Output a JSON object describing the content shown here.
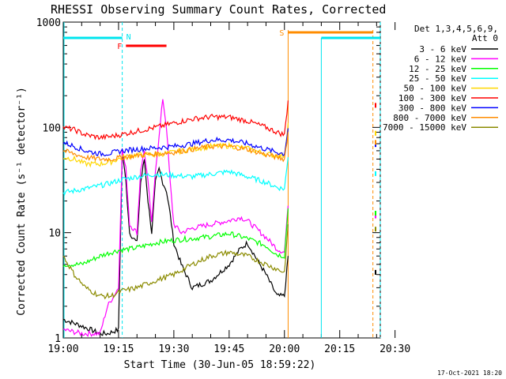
{
  "chart_data": {
    "type": "line",
    "title": "RHESSI Observing Summary Count Rates, Corrected",
    "xlabel": "Start Time (30-Jun-05 18:59:22)",
    "ylabel": "Corrected Count Rate (s⁻¹ detector⁻¹)",
    "yscale": "log",
    "ylim": [
      1,
      1000
    ],
    "xlim_minutes": [
      0,
      86
    ],
    "x_tick_labels": [
      "19:00",
      "19:15",
      "19:30",
      "19:45",
      "20:00",
      "20:15",
      "20:30"
    ],
    "x_tick_minutes": [
      0,
      15,
      30,
      45,
      60,
      75,
      90
    ],
    "y_tick_labels": [
      "1",
      "10",
      "100",
      "1000"
    ],
    "y_tick_values": [
      1,
      10,
      100,
      1000
    ],
    "legend_header": [
      "Det 1,3,4,5,6,9,",
      "Att 0"
    ],
    "series": [
      {
        "name": "3 - 6 keV",
        "color": "#000000",
        "x": [
          0,
          5,
          10,
          12,
          15,
          16,
          17,
          18,
          20,
          21,
          22,
          23,
          24,
          25,
          26,
          27,
          28,
          29,
          30,
          32,
          35,
          40,
          45,
          48,
          50,
          52,
          55,
          58,
          60,
          61
        ],
        "y": [
          1.5,
          1.3,
          1.1,
          1.1,
          1.2,
          60,
          30,
          10,
          8,
          30,
          50,
          20,
          10,
          30,
          40,
          30,
          25,
          15,
          8,
          5,
          3,
          3.5,
          5,
          7,
          8,
          6,
          4,
          2.5,
          2.5,
          6
        ]
      },
      {
        "name": "6 - 12 keV",
        "color": "#ff00ff",
        "x": [
          0,
          5,
          10,
          12,
          15,
          16,
          17,
          18,
          20,
          21,
          22,
          23,
          24,
          25,
          26,
          27,
          28,
          29,
          30,
          32,
          35,
          40,
          45,
          48,
          50,
          55,
          58,
          60,
          61
        ],
        "y": [
          1.2,
          1.1,
          1.1,
          2,
          3,
          60,
          40,
          12,
          10,
          40,
          60,
          30,
          12,
          40,
          80,
          190,
          100,
          30,
          12,
          10,
          11,
          12,
          13,
          14,
          13,
          9,
          7,
          6.5,
          18
        ]
      },
      {
        "name": "12 - 25 keV",
        "color": "#00ff00",
        "x": [
          0,
          5,
          10,
          13,
          15,
          18,
          20,
          25,
          30,
          35,
          40,
          45,
          50,
          55,
          58,
          60,
          61
        ],
        "y": [
          5,
          5,
          6,
          6.5,
          6.8,
          7,
          7.2,
          8,
          8.5,
          8.8,
          9.2,
          9.8,
          8.8,
          7.5,
          6.2,
          6.0,
          17
        ]
      },
      {
        "name": "25 - 50 keV",
        "color": "#00ffff",
        "x": [
          0,
          3,
          8,
          12,
          16,
          20,
          25,
          30,
          35,
          40,
          45,
          50,
          55,
          58,
          60,
          61
        ],
        "y": [
          24,
          25,
          27,
          29,
          32,
          34,
          36,
          35,
          34,
          36,
          38,
          34,
          30,
          27,
          26,
          52
        ]
      },
      {
        "name": "50 - 100 keV",
        "color": "#ffd700",
        "x": [
          0,
          3,
          6,
          10,
          13,
          16,
          20,
          25,
          30,
          35,
          40,
          45,
          50,
          55,
          58,
          60,
          61
        ],
        "y": [
          52,
          50,
          45,
          45,
          47,
          52,
          55,
          55,
          58,
          62,
          66,
          67,
          63,
          56,
          54,
          54,
          110
        ]
      },
      {
        "name": "100 - 300 keV",
        "color": "#ff0000",
        "x": [
          0,
          3,
          6,
          10,
          13,
          16,
          20,
          25,
          30,
          35,
          40,
          45,
          50,
          55,
          58,
          60,
          61
        ],
        "y": [
          100,
          95,
          85,
          80,
          82,
          86,
          92,
          100,
          110,
          120,
          126,
          125,
          115,
          100,
          90,
          85,
          180
        ]
      },
      {
        "name": "300 - 800 keV",
        "color": "#0000ff",
        "x": [
          0,
          3,
          6,
          10,
          13,
          16,
          20,
          25,
          30,
          35,
          40,
          45,
          50,
          55,
          58,
          60,
          61
        ],
        "y": [
          72,
          66,
          60,
          56,
          57,
          60,
          62,
          64,
          66,
          70,
          76,
          76,
          70,
          62,
          58,
          56,
          98
        ]
      },
      {
        "name": "800 - 7000 keV",
        "color": "#ff8c00",
        "x": [
          0,
          3,
          6,
          10,
          13,
          16,
          20,
          25,
          30,
          35,
          40,
          45,
          50,
          55,
          58,
          60,
          61
        ],
        "y": [
          60,
          56,
          52,
          50,
          50,
          52,
          54,
          56,
          58,
          62,
          66,
          66,
          62,
          55,
          52,
          50,
          90
        ]
      },
      {
        "name": "7000 - 15000 keV",
        "color": "#8b8b00",
        "x": [
          0,
          3,
          6,
          10,
          13,
          16,
          20,
          25,
          30,
          35,
          40,
          45,
          50,
          55,
          58,
          60,
          61
        ],
        "y": [
          6,
          4,
          3,
          2.5,
          2.5,
          2.8,
          3,
          3.5,
          4,
          5,
          6,
          6.5,
          6,
          5,
          4.5,
          4.2,
          12
        ]
      }
    ],
    "annotations": [
      {
        "label": "N",
        "color": "#00e5ee",
        "kind": "night-bar",
        "x_start": 0,
        "x_end": 16
      },
      {
        "label": "F",
        "color": "#ff0000",
        "kind": "flare-bar",
        "x_start": 17,
        "x_end": 28
      },
      {
        "label": "S",
        "color": "#ff8c00",
        "kind": "saa-bar",
        "x_start": 61,
        "x_end": 84
      },
      {
        "label": "",
        "color": "#00e5ee",
        "kind": "night-bar",
        "x_start": 70,
        "x_end": 86
      }
    ]
  },
  "footer_timestamp": "17-Oct-2021 18:20"
}
